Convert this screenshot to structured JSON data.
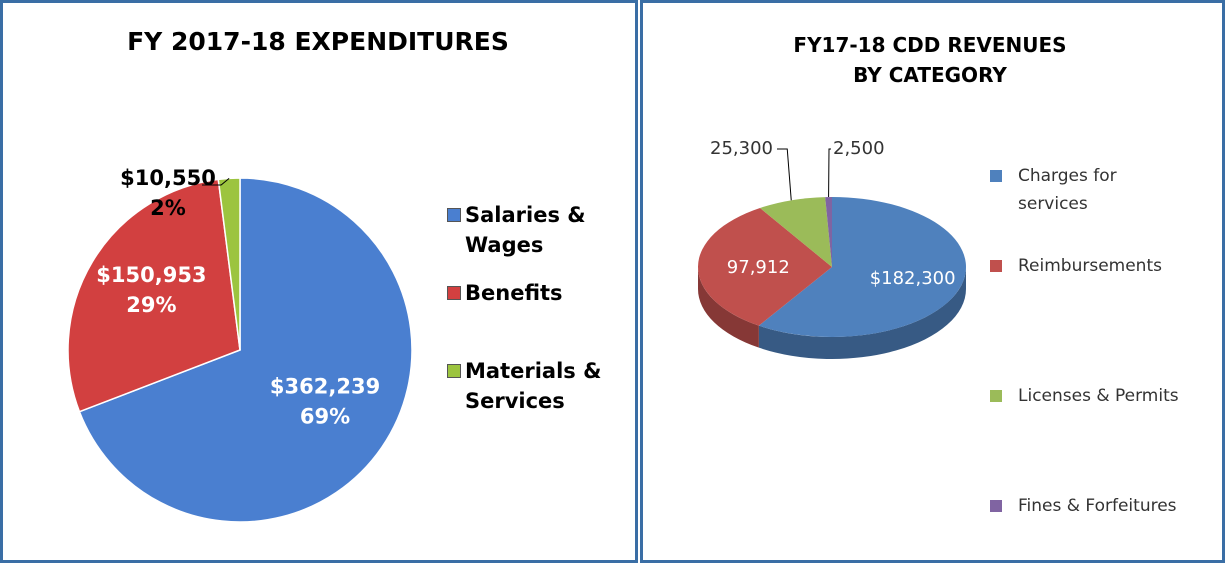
{
  "chart_data": [
    {
      "type": "pie",
      "title": "FY 2017-18 EXPENDITURES",
      "categories": [
        "Salaries & Wages",
        "Benefits",
        "Materials & Services"
      ],
      "values": [
        362239,
        150953,
        10550
      ],
      "value_labels": [
        "$362,239",
        "$150,953",
        "$10,550"
      ],
      "percent_labels": [
        "69%",
        "29%",
        "2%"
      ],
      "colors": [
        "#4a7fd0",
        "#d24040",
        "#9cc43f"
      ]
    },
    {
      "type": "pie3d",
      "title": "FY17-18 CDD REVENUES BY CATEGORY",
      "categories": [
        "Charges for services",
        "Reimbursements",
        "Licenses & Permits",
        "Fines & Forfeitures"
      ],
      "values": [
        182300,
        97912,
        25300,
        2500
      ],
      "value_labels": [
        "$182,300",
        "97,912",
        "25,300",
        "2,500"
      ],
      "colors": [
        "#4f81bd",
        "#c0504d",
        "#9bbb59",
        "#8064a2"
      ]
    }
  ]
}
